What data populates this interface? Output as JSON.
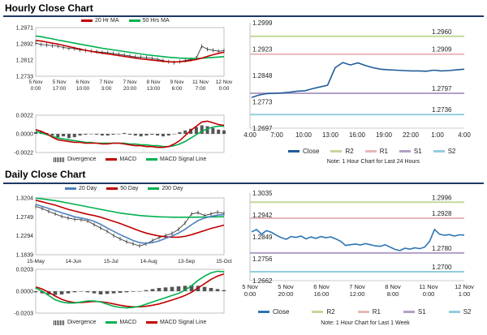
{
  "hourly": {
    "title": "Hourly Close Chart",
    "ma_chart": {
      "legend": [
        {
          "name": "20 Hr MA",
          "color": "#c00000"
        },
        {
          "name": "50 Hrs MA",
          "color": "#00b050"
        }
      ],
      "y_ticks": [
        "1.2971",
        "1.2892",
        "1.2812",
        "1.2733"
      ],
      "ylim": [
        1.2733,
        1.2971
      ],
      "x_ticks": [
        [
          "5 Nov",
          "0:00"
        ],
        [
          "5 Nov",
          "17:00"
        ],
        [
          "6 Nov",
          "10:00"
        ],
        [
          "7 Nov",
          "3:00"
        ],
        [
          "7 Nov",
          "20:00"
        ],
        [
          "8 Nov",
          "13:00"
        ],
        [
          "9 Nov",
          "6:00"
        ],
        [
          "11 Nov",
          "7:00"
        ],
        [
          "12 Nov",
          "0:00"
        ]
      ],
      "close": [
        1.2895,
        1.2888,
        1.2886,
        1.2882,
        1.288,
        1.2874,
        1.287,
        1.2868,
        1.2862,
        1.2859,
        1.2856,
        1.2853,
        1.285,
        1.2848,
        1.2844,
        1.284,
        1.2836,
        1.2832,
        1.2828,
        1.2826,
        1.2824,
        1.282,
        1.2816,
        1.281,
        1.2804,
        1.28,
        1.2805,
        1.281,
        1.2815,
        1.2822,
        1.288,
        1.2865,
        1.286,
        1.2855,
        1.2858
      ],
      "ma20": [
        1.2908,
        1.2905,
        1.29,
        1.2895,
        1.289,
        1.2884,
        1.2878,
        1.2872,
        1.2866,
        1.286,
        1.2855,
        1.285,
        1.2846,
        1.2842,
        1.2838,
        1.2834,
        1.283,
        1.2826,
        1.2822,
        1.2818,
        1.2815,
        1.2812,
        1.2809,
        1.2806,
        1.2804,
        1.2803,
        1.2804,
        1.2806,
        1.281,
        1.2815,
        1.2822,
        1.283,
        1.2838,
        1.2845,
        1.2851
      ],
      "ma50": [
        1.293,
        1.2926,
        1.2921,
        1.2916,
        1.291,
        1.2905,
        1.29,
        1.2895,
        1.289,
        1.2885,
        1.288,
        1.2875,
        1.287,
        1.2866,
        1.2862,
        1.2858,
        1.2854,
        1.285,
        1.2846,
        1.2842,
        1.2838,
        1.2835,
        1.2832,
        1.2829,
        1.2826,
        1.2824,
        1.2822,
        1.2821,
        1.282,
        1.282,
        1.2821,
        1.2823,
        1.2825,
        1.2827,
        1.2829
      ]
    },
    "macd_chart": {
      "y_ticks": [
        "0.0022",
        "0.0000",
        "-0.0022"
      ],
      "ylim": [
        -0.0022,
        0.0022
      ],
      "legend": [
        {
          "name": "Divergence",
          "color": "#404040",
          "kind": "bar"
        },
        {
          "name": "MACD",
          "color": "#c00000",
          "kind": "line"
        },
        {
          "name": "MACD Signal Line",
          "color": "#00b050",
          "kind": "line"
        }
      ],
      "divergence": [
        0.0002,
        0.0003,
        0.0001,
        -0.0002,
        -0.0004,
        -0.0003,
        -0.0005,
        -0.0004,
        -0.0002,
        -0.0001,
        0.0,
        -0.0001,
        -0.0002,
        -0.0002,
        -0.0001,
        0.0,
        0.0001,
        -0.0001,
        -0.0002,
        -0.0003,
        -0.0002,
        -0.0001,
        -0.0002,
        -0.0003,
        -0.0002,
        0.0,
        0.0002,
        0.0004,
        0.0006,
        0.0008,
        0.001,
        0.0009,
        0.0007,
        0.0005,
        0.0004
      ],
      "macd": [
        0.0005,
        0.0003,
        0.0,
        -0.0004,
        -0.0007,
        -0.0008,
        -0.0009,
        -0.001,
        -0.001,
        -0.0011,
        -0.0011,
        -0.0011,
        -0.0012,
        -0.0012,
        -0.0011,
        -0.0011,
        -0.0012,
        -0.0013,
        -0.0014,
        -0.0014,
        -0.0015,
        -0.0015,
        -0.0016,
        -0.0016,
        -0.0015,
        -0.0012,
        -0.0008,
        -0.0002,
        0.0004,
        0.0009,
        0.0014,
        0.0015,
        0.0013,
        0.0011,
        0.001
      ],
      "signal": [
        0.0003,
        0.0001,
        -0.0001,
        -0.0003,
        -0.0005,
        -0.0006,
        -0.0007,
        -0.0008,
        -0.0009,
        -0.001,
        -0.001,
        -0.0011,
        -0.0011,
        -0.0011,
        -0.0011,
        -0.0011,
        -0.0011,
        -0.0012,
        -0.0012,
        -0.0013,
        -0.0013,
        -0.0014,
        -0.0014,
        -0.0015,
        -0.0015,
        -0.0014,
        -0.0012,
        -0.0009,
        -0.0005,
        -0.0001,
        0.0003,
        0.0006,
        0.0008,
        0.0009,
        0.0009
      ]
    },
    "close_chart": {
      "y_ticks": [
        "1.2999",
        "1.2923",
        "1.2848",
        "1.2773",
        "1.2697"
      ],
      "ylim": [
        1.2697,
        1.2999
      ],
      "x_ticks": [
        "4:00",
        "7:00",
        "10:00",
        "13:00",
        "16:00",
        "19:00",
        "22:00",
        "1:00",
        "4:00"
      ],
      "levels": [
        {
          "name": "R2",
          "value": 1.296,
          "label": "1.2960",
          "color": "#c4d79b"
        },
        {
          "name": "R1",
          "value": 1.2909,
          "label": "1.2909",
          "color": "#e6b8b7"
        },
        {
          "name": "S1",
          "value": 1.2797,
          "label": "1.2797",
          "color": "#b1a0c7"
        },
        {
          "name": "S2",
          "value": 1.2736,
          "label": "1.2736",
          "color": "#92cddc"
        }
      ],
      "close": [
        1.2785,
        1.2792,
        1.2796,
        1.2797,
        1.2798,
        1.28,
        1.2803,
        1.2804,
        1.281,
        1.2815,
        1.282,
        1.287,
        1.2885,
        1.2878,
        1.2884,
        1.2876,
        1.287,
        1.2866,
        1.2864,
        1.2863,
        1.2862,
        1.2861,
        1.2861,
        1.286,
        1.2863,
        1.2861,
        1.2862,
        1.2864,
        1.2866
      ],
      "legend": [
        "Close",
        "R2",
        "R1",
        "S1",
        "S2"
      ],
      "note": "Note: 1 Hour Chart for Last 24 Hours"
    }
  },
  "daily": {
    "title": "Daily Close Chart",
    "ma_chart": {
      "legend": [
        {
          "name": "20 Day",
          "color": "#4f81bd"
        },
        {
          "name": "50 Day",
          "color": "#c00000"
        },
        {
          "name": "200 Day",
          "color": "#00b050"
        }
      ],
      "y_ticks": [
        "1.3204",
        "1.2749",
        "1.2294",
        "1.1839"
      ],
      "ylim": [
        1.1839,
        1.3204
      ],
      "x_ticks": [
        "15-May",
        "14-Jun",
        "15-Jul",
        "14-Aug",
        "13-Sep",
        "15-Oct"
      ],
      "close": [
        1.3,
        1.295,
        1.288,
        1.282,
        1.276,
        1.272,
        1.269,
        1.268,
        1.265,
        1.256,
        1.248,
        1.24,
        1.23,
        1.222,
        1.215,
        1.21,
        1.205,
        1.21,
        1.218,
        1.225,
        1.23,
        1.235,
        1.245,
        1.26,
        1.282,
        1.285,
        1.278,
        1.282,
        1.286,
        1.283
      ],
      "ma20": [
        1.305,
        1.3,
        1.295,
        1.29,
        1.285,
        1.28,
        1.275,
        1.272,
        1.269,
        1.264,
        1.257,
        1.248,
        1.24,
        1.232,
        1.225,
        1.218,
        1.213,
        1.211,
        1.213,
        1.217,
        1.223,
        1.229,
        1.236,
        1.245,
        1.256,
        1.266,
        1.272,
        1.276,
        1.279,
        1.28
      ],
      "ma50": [
        1.315,
        1.311,
        1.307,
        1.303,
        1.298,
        1.293,
        1.289,
        1.285,
        1.281,
        1.278,
        1.274,
        1.269,
        1.264,
        1.259,
        1.253,
        1.247,
        1.241,
        1.236,
        1.232,
        1.229,
        1.227,
        1.226,
        1.226,
        1.228,
        1.232,
        1.237,
        1.242,
        1.247,
        1.251,
        1.255
      ],
      "ma200": [
        1.32,
        1.318,
        1.316,
        1.314,
        1.311,
        1.308,
        1.305,
        1.302,
        1.299,
        1.296,
        1.293,
        1.29,
        1.287,
        1.284,
        1.282,
        1.28,
        1.278,
        1.277,
        1.276,
        1.275,
        1.2745,
        1.274,
        1.274,
        1.274,
        1.274,
        1.2742,
        1.2745,
        1.2748,
        1.275,
        1.2752
      ]
    },
    "macd_chart": {
      "y_ticks": [
        "0.0203",
        "0.0000",
        "-0.0203"
      ],
      "ylim": [
        -0.0203,
        0.0203
      ],
      "legend": [
        {
          "name": "Divergence",
          "color": "#404040",
          "kind": "bar"
        },
        {
          "name": "MACD",
          "color": "#00b050",
          "kind": "line"
        },
        {
          "name": "MACD Signal Line",
          "color": "#c00000",
          "kind": "line"
        }
      ],
      "divergence": [
        -0.001,
        -0.002,
        -0.003,
        -0.0035,
        -0.003,
        -0.002,
        -0.001,
        0.0,
        -0.001,
        -0.002,
        -0.003,
        -0.0025,
        -0.002,
        -0.0015,
        -0.001,
        -0.0005,
        0.0,
        0.001,
        0.002,
        0.003,
        0.0035,
        0.004,
        0.0045,
        0.005,
        0.0055,
        0.005,
        0.004,
        0.003,
        0.002,
        0.001
      ],
      "macd": [
        0.003,
        0.0,
        -0.004,
        -0.008,
        -0.01,
        -0.011,
        -0.011,
        -0.01,
        -0.009,
        -0.009,
        -0.01,
        -0.012,
        -0.014,
        -0.015,
        -0.0155,
        -0.015,
        -0.014,
        -0.012,
        -0.01,
        -0.008,
        -0.006,
        -0.004,
        -0.002,
        0.001,
        0.005,
        0.01,
        0.014,
        0.017,
        0.0185,
        0.018
      ],
      "signal": [
        0.004,
        0.002,
        -0.001,
        -0.0045,
        -0.0075,
        -0.0095,
        -0.0105,
        -0.0105,
        -0.01,
        -0.0095,
        -0.0098,
        -0.0105,
        -0.0118,
        -0.013,
        -0.014,
        -0.0145,
        -0.0145,
        -0.014,
        -0.013,
        -0.0118,
        -0.01,
        -0.0082,
        -0.0062,
        -0.004,
        -0.001,
        0.003,
        0.007,
        0.011,
        0.014,
        0.016
      ]
    },
    "close_chart": {
      "y_ticks": [
        "1.3035",
        "1.2942",
        "1.2849",
        "1.2756",
        "1.2662"
      ],
      "ylim": [
        1.2662,
        1.3035
      ],
      "x_ticks": [
        [
          "5 Nov",
          "0:00"
        ],
        [
          "5 Nov",
          "20:00"
        ],
        [
          "6 Nov",
          "16:00"
        ],
        [
          "7 Nov",
          "12:00"
        ],
        [
          "8 Nov",
          "8:00"
        ],
        [
          "11 Nov",
          "0:00"
        ],
        [
          "12 Nov",
          "1:00"
        ]
      ],
      "levels": [
        {
          "name": "R2",
          "value": 1.2996,
          "label": "1.2996",
          "color": "#c4d79b"
        },
        {
          "name": "R1",
          "value": 1.2928,
          "label": "1.2928",
          "color": "#e6b8b7"
        },
        {
          "name": "S1",
          "value": 1.278,
          "label": "1.2780",
          "color": "#b1a0c7"
        },
        {
          "name": "S2",
          "value": 1.27,
          "label": "1.2700",
          "color": "#92cddc"
        }
      ],
      "close": [
        1.287,
        1.288,
        1.286,
        1.2875,
        1.2868,
        1.2855,
        1.2845,
        1.2838,
        1.285,
        1.2846,
        1.2852,
        1.284,
        1.2848,
        1.2842,
        1.285,
        1.2845,
        1.2848,
        1.284,
        1.283,
        1.2812,
        1.2815,
        1.2818,
        1.2814,
        1.282,
        1.2815,
        1.281,
        1.2808,
        1.2815,
        1.2805,
        1.2795,
        1.279,
        1.28,
        1.2796,
        1.2802,
        1.2798,
        1.2805,
        1.283,
        1.288,
        1.286,
        1.2855,
        1.2858,
        1.2852,
        1.2857,
        1.2856
      ],
      "legend": [
        "Close",
        "R2",
        "R1",
        "S1",
        "S2"
      ],
      "note": "Note: 1 Hour Chart for Last 1 Week"
    }
  },
  "chart_data": [
    {
      "type": "line",
      "title": "Hourly Close Chart",
      "series": [
        {
          "name": "20 Hr MA"
        },
        {
          "name": "50 Hrs MA"
        }
      ],
      "ylim": [
        1.2733,
        1.2971
      ]
    },
    {
      "type": "line",
      "series": [
        {
          "name": "MACD"
        },
        {
          "name": "MACD Signal Line"
        },
        {
          "name": "Divergence"
        }
      ],
      "ylim": [
        -0.0022,
        0.0022
      ]
    },
    {
      "type": "line",
      "series": [
        {
          "name": "Close"
        },
        {
          "name": "R2"
        },
        {
          "name": "R1"
        },
        {
          "name": "S1"
        },
        {
          "name": "S2"
        }
      ],
      "ylim": [
        1.2697,
        1.2999
      ]
    },
    {
      "type": "line",
      "title": "Daily Close Chart",
      "series": [
        {
          "name": "20 Day"
        },
        {
          "name": "50 Day"
        },
        {
          "name": "200 Day"
        }
      ],
      "ylim": [
        1.1839,
        1.3204
      ]
    },
    {
      "type": "line",
      "series": [
        {
          "name": "MACD"
        },
        {
          "name": "MACD Signal Line"
        },
        {
          "name": "Divergence"
        }
      ],
      "ylim": [
        -0.0203,
        0.0203
      ]
    },
    {
      "type": "line",
      "series": [
        {
          "name": "Close"
        },
        {
          "name": "R2"
        },
        {
          "name": "R1"
        },
        {
          "name": "S1"
        },
        {
          "name": "S2"
        }
      ],
      "ylim": [
        1.2662,
        1.3035
      ]
    }
  ]
}
